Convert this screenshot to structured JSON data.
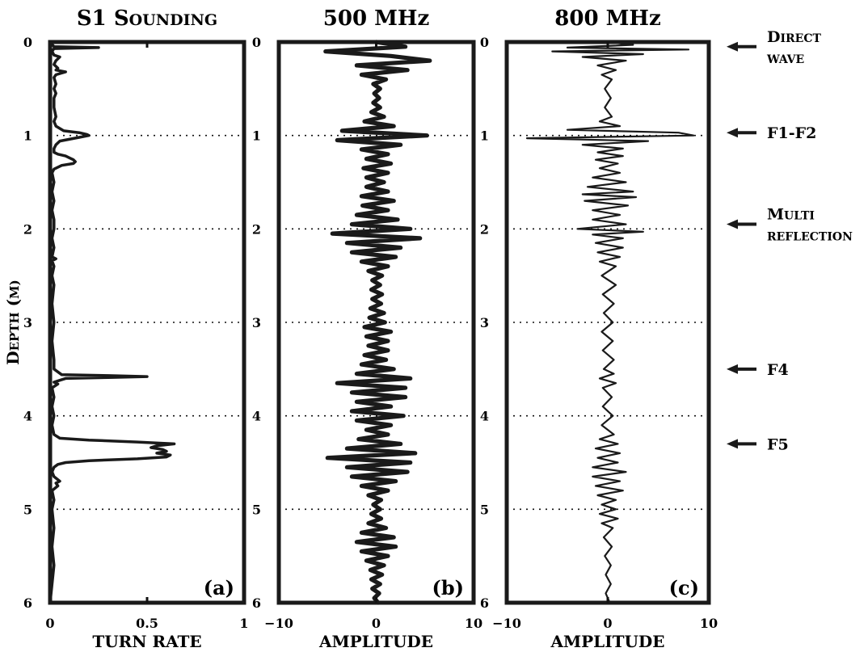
{
  "chart_data": [
    {
      "panel": "a",
      "type": "line",
      "title": "S1 Sounding",
      "xlabel": "TURN RATE",
      "ylabel": "Depth (m)",
      "xlim": [
        0,
        1
      ],
      "ylim": [
        0,
        6
      ],
      "y_inverted": true,
      "xticks": [
        "0",
        "0.5",
        "1"
      ],
      "yticks": [
        "0",
        "1",
        "2",
        "3",
        "4",
        "5",
        "6"
      ],
      "grid": "dotted horizontal at each metre",
      "panel_label": "(a)",
      "series": [
        {
          "depth": [
            0.0,
            0.05,
            0.06,
            0.07,
            0.1,
            0.14,
            0.16,
            0.2,
            0.24,
            0.28,
            0.3,
            0.32,
            0.35,
            0.38,
            0.45,
            0.5,
            0.55,
            0.6,
            0.7,
            0.8,
            0.85,
            0.9,
            0.95,
            0.97,
            0.99,
            1.0,
            1.02,
            1.06,
            1.1,
            1.14,
            1.18,
            1.2,
            1.22,
            1.24,
            1.26,
            1.28,
            1.3,
            1.32,
            1.36,
            1.4,
            1.5,
            1.6,
            1.7,
            1.8,
            1.9,
            2.0,
            2.1,
            2.2,
            2.3,
            2.32,
            2.34,
            2.4,
            2.5,
            2.6,
            2.8,
            3.0,
            3.2,
            3.4,
            3.5,
            3.56,
            3.57,
            3.58,
            3.59,
            3.6,
            3.62,
            3.64,
            3.66,
            3.7,
            3.8,
            3.9,
            4.0,
            4.1,
            4.2,
            4.24,
            4.26,
            4.28,
            4.3,
            4.32,
            4.34,
            4.36,
            4.38,
            4.4,
            4.42,
            4.44,
            4.46,
            4.48,
            4.5,
            4.52,
            4.55,
            4.6,
            4.65,
            4.7,
            4.72,
            4.75,
            4.8,
            4.9,
            5.0,
            5.2,
            5.4,
            5.6,
            5.8,
            6.0
          ],
          "turn_rate": [
            0.0,
            0.02,
            0.25,
            0.02,
            0.01,
            0.02,
            0.05,
            0.03,
            0.02,
            0.04,
            0.03,
            0.08,
            0.03,
            0.02,
            0.03,
            0.02,
            0.03,
            0.02,
            0.02,
            0.03,
            0.02,
            0.03,
            0.07,
            0.15,
            0.19,
            0.2,
            0.15,
            0.05,
            0.03,
            0.02,
            0.02,
            0.04,
            0.08,
            0.1,
            0.12,
            0.13,
            0.12,
            0.06,
            0.02,
            0.01,
            0.02,
            0.01,
            0.02,
            0.01,
            0.02,
            0.02,
            0.01,
            0.02,
            0.01,
            0.03,
            0.01,
            0.02,
            0.01,
            0.02,
            0.01,
            0.02,
            0.01,
            0.02,
            0.02,
            0.06,
            0.3,
            0.5,
            0.3,
            0.08,
            0.05,
            0.02,
            0.04,
            0.01,
            0.02,
            0.01,
            0.02,
            0.01,
            0.02,
            0.05,
            0.2,
            0.45,
            0.64,
            0.55,
            0.52,
            0.58,
            0.6,
            0.55,
            0.62,
            0.6,
            0.45,
            0.2,
            0.08,
            0.04,
            0.02,
            0.01,
            0.02,
            0.05,
            0.03,
            0.04,
            0.01,
            0.02,
            0.01,
            0.02,
            0.01,
            0.02,
            0.01,
            0.0
          ]
        }
      ]
    },
    {
      "panel": "b",
      "type": "line",
      "title": "500 MHz",
      "xlabel": "AMPLITUDE",
      "xlim": [
        -10,
        10
      ],
      "ylim": [
        0,
        6
      ],
      "y_inverted": true,
      "xticks": [
        "−10",
        "0",
        "10"
      ],
      "yticks": [
        "0",
        "1",
        "2",
        "3",
        "4",
        "5",
        "6"
      ],
      "grid": "dotted horizontal at each metre",
      "panel_label": "(b)",
      "series": [
        {
          "depth": [
            0.0,
            0.05,
            0.1,
            0.15,
            0.2,
            0.25,
            0.3,
            0.35,
            0.4,
            0.45,
            0.5,
            0.55,
            0.6,
            0.65,
            0.7,
            0.75,
            0.8,
            0.85,
            0.9,
            0.95,
            1.0,
            1.05,
            1.1,
            1.15,
            1.2,
            1.25,
            1.3,
            1.35,
            1.4,
            1.45,
            1.5,
            1.55,
            1.6,
            1.65,
            1.7,
            1.75,
            1.8,
            1.85,
            1.9,
            1.95,
            2.0,
            2.05,
            2.1,
            2.15,
            2.2,
            2.25,
            2.3,
            2.35,
            2.4,
            2.45,
            2.5,
            2.55,
            2.6,
            2.65,
            2.7,
            2.75,
            2.8,
            2.85,
            2.9,
            2.95,
            3.0,
            3.05,
            3.1,
            3.15,
            3.2,
            3.25,
            3.3,
            3.35,
            3.4,
            3.45,
            3.5,
            3.55,
            3.6,
            3.65,
            3.7,
            3.75,
            3.8,
            3.85,
            3.9,
            3.95,
            4.0,
            4.05,
            4.1,
            4.15,
            4.2,
            4.25,
            4.3,
            4.35,
            4.4,
            4.45,
            4.5,
            4.55,
            4.6,
            4.65,
            4.7,
            4.75,
            4.8,
            4.85,
            4.9,
            4.95,
            5.0,
            5.05,
            5.1,
            5.15,
            5.2,
            5.25,
            5.3,
            5.35,
            5.4,
            5.45,
            5.5,
            5.55,
            5.6,
            5.65,
            5.7,
            5.75,
            5.8,
            5.85,
            5.9,
            5.95,
            6.0
          ],
          "amplitude": [
            0.0,
            3.0,
            -5.2,
            1.5,
            5.5,
            -2.0,
            3.2,
            -1.5,
            1.0,
            -0.3,
            0.4,
            -0.2,
            0.3,
            -0.3,
            0.4,
            -0.5,
            0.8,
            -1.2,
            1.8,
            -3.5,
            5.2,
            -4.0,
            2.5,
            -1.5,
            1.2,
            -1.0,
            1.5,
            -1.3,
            1.2,
            -1.0,
            0.8,
            -1.0,
            1.2,
            -1.5,
            1.8,
            -1.4,
            1.2,
            -2.0,
            2.2,
            -2.5,
            3.5,
            -4.5,
            4.5,
            -3.0,
            2.5,
            -2.5,
            2.0,
            -1.5,
            1.2,
            -0.8,
            0.6,
            -0.4,
            0.4,
            -0.5,
            0.6,
            -0.4,
            0.5,
            -0.6,
            0.8,
            -0.7,
            0.9,
            -1.2,
            1.5,
            -1.0,
            1.2,
            -0.8,
            1.2,
            -1.2,
            1.0,
            -1.5,
            1.8,
            -2.0,
            3.5,
            -4.0,
            3.0,
            -2.5,
            3.0,
            -2.0,
            1.5,
            -2.5,
            2.8,
            -2.0,
            1.5,
            -1.0,
            1.2,
            -1.8,
            2.5,
            -3.0,
            4.0,
            -5.0,
            3.5,
            -3.0,
            3.2,
            -2.5,
            2.0,
            -1.5,
            1.2,
            -0.8,
            0.5,
            -0.3,
            0.4,
            -0.5,
            0.5,
            -0.8,
            1.0,
            -1.5,
            1.8,
            -2.0,
            2.0,
            -1.5,
            1.2,
            -1.0,
            0.8,
            -0.6,
            0.6,
            -0.5,
            0.4,
            -0.4,
            0.3,
            -0.2,
            0.2
          ]
        }
      ]
    },
    {
      "panel": "c",
      "type": "line",
      "title": "800 MHz",
      "xlabel": "AMPLITUDE",
      "xlim": [
        -10,
        10
      ],
      "ylim": [
        0,
        6
      ],
      "y_inverted": true,
      "xticks": [
        "−10",
        "0",
        "10"
      ],
      "yticks": [
        "0",
        "1",
        "2",
        "3",
        "4",
        "5",
        "6"
      ],
      "grid": "dotted horizontal at each metre",
      "panel_label": "(c)",
      "series": [
        {
          "depth": [
            0.0,
            0.03,
            0.06,
            0.08,
            0.1,
            0.13,
            0.16,
            0.2,
            0.25,
            0.3,
            0.35,
            0.4,
            0.5,
            0.6,
            0.7,
            0.8,
            0.85,
            0.9,
            0.94,
            0.97,
            1.0,
            1.03,
            1.06,
            1.1,
            1.14,
            1.18,
            1.22,
            1.26,
            1.3,
            1.35,
            1.4,
            1.45,
            1.5,
            1.55,
            1.6,
            1.63,
            1.66,
            1.7,
            1.75,
            1.8,
            1.85,
            1.9,
            1.95,
            2.0,
            2.03,
            2.06,
            2.1,
            2.15,
            2.2,
            2.25,
            2.3,
            2.35,
            2.4,
            2.5,
            2.6,
            2.7,
            2.8,
            2.9,
            3.0,
            3.1,
            3.2,
            3.3,
            3.4,
            3.5,
            3.55,
            3.6,
            3.65,
            3.7,
            3.8,
            3.9,
            4.0,
            4.1,
            4.2,
            4.25,
            4.3,
            4.35,
            4.4,
            4.45,
            4.5,
            4.55,
            4.6,
            4.65,
            4.7,
            4.75,
            4.8,
            4.85,
            4.9,
            4.95,
            5.0,
            5.05,
            5.1,
            5.15,
            5.2,
            5.3,
            5.4,
            5.5,
            5.6,
            5.7,
            5.8,
            5.9,
            6.0
          ],
          "amplitude": [
            0.0,
            2.5,
            -4.0,
            8.0,
            -5.5,
            3.5,
            -2.5,
            1.8,
            -1.0,
            0.8,
            -0.6,
            0.4,
            -0.3,
            0.3,
            -0.3,
            0.4,
            -0.8,
            1.2,
            -4.0,
            7.0,
            8.5,
            -8.0,
            4.0,
            -2.5,
            1.5,
            -1.0,
            1.5,
            -1.2,
            1.0,
            -0.8,
            1.2,
            -1.5,
            1.8,
            -2.0,
            2.5,
            -2.5,
            2.8,
            -2.3,
            2.0,
            -1.5,
            1.2,
            -1.5,
            1.8,
            -3.0,
            3.5,
            -1.5,
            1.5,
            -1.2,
            1.5,
            -1.0,
            1.2,
            -0.8,
            0.8,
            -0.6,
            0.8,
            -0.5,
            0.6,
            -0.4,
            0.5,
            -0.6,
            0.5,
            -0.5,
            0.6,
            -0.4,
            0.6,
            -0.8,
            0.8,
            -0.5,
            0.4,
            -0.5,
            0.5,
            -0.6,
            0.6,
            -0.8,
            1.0,
            -1.2,
            1.2,
            -1.0,
            1.0,
            -1.5,
            1.8,
            -1.5,
            1.2,
            -1.2,
            1.5,
            -1.0,
            0.8,
            -0.6,
            0.8,
            -0.8,
            1.0,
            -0.6,
            0.5,
            -0.4,
            0.4,
            -0.3,
            0.3,
            -0.2,
            0.3,
            -0.2,
            0.2
          ]
        }
      ]
    }
  ],
  "annotations": [
    {
      "lines": [
        "Direct",
        "wave"
      ],
      "depth": 0.05
    },
    {
      "lines": [
        "F1-F2"
      ],
      "depth": 0.97
    },
    {
      "lines": [
        "Multi",
        "reflection"
      ],
      "depth": 1.95
    },
    {
      "lines": [
        "F4"
      ],
      "depth": 3.5
    },
    {
      "lines": [
        "F5"
      ],
      "depth": 4.3
    }
  ],
  "colors": {
    "line": "#1a1a1a",
    "frame": "#1a1a1a",
    "background": "#ffffff"
  }
}
